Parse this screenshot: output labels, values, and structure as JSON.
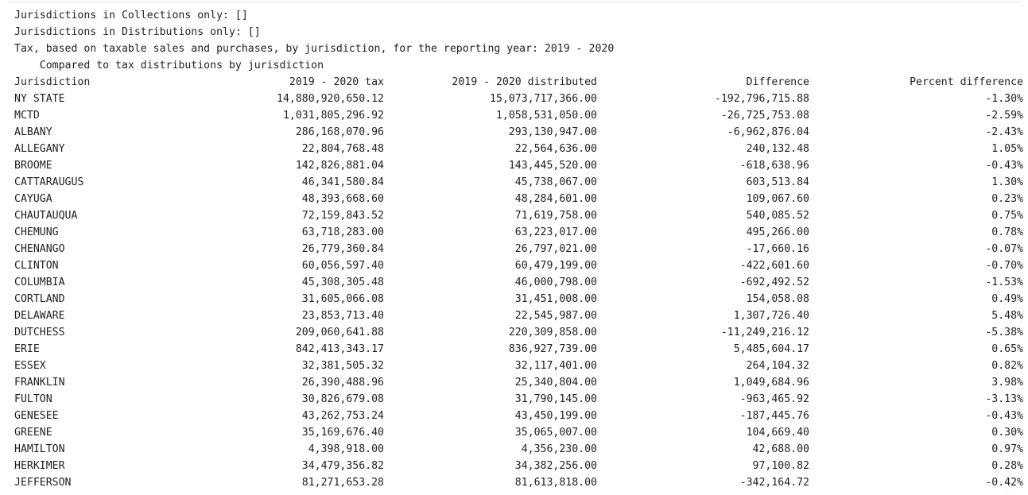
{
  "output": {
    "lines": [
      "Jurisdictions in Collections only: []",
      "Jurisdictions in Distributions only: []",
      "Tax, based on taxable sales and purchases, by jurisdiction, for the reporting year: 2019 - 2020",
      "    Compared to tax distributions by jurisdiction"
    ],
    "table": {
      "headers": [
        "Jurisdiction",
        "2019 - 2020 tax",
        "2019 - 2020 distributed",
        "Difference",
        "Percent difference"
      ],
      "rows": [
        [
          "NY STATE",
          "14,880,920,650.12",
          "15,073,717,366.00",
          "-192,796,715.88",
          "-1.30%"
        ],
        [
          "MCTD",
          "1,031,805,296.92",
          "1,058,531,050.00",
          "-26,725,753.08",
          "-2.59%"
        ],
        [
          "ALBANY",
          "286,168,070.96",
          "293,130,947.00",
          "-6,962,876.04",
          "-2.43%"
        ],
        [
          "ALLEGANY",
          "22,804,768.48",
          "22,564,636.00",
          "240,132.48",
          "1.05%"
        ],
        [
          "BROOME",
          "142,826,881.04",
          "143,445,520.00",
          "-618,638.96",
          "-0.43%"
        ],
        [
          "CATTARAUGUS",
          "46,341,580.84",
          "45,738,067.00",
          "603,513.84",
          "1.30%"
        ],
        [
          "CAYUGA",
          "48,393,668.60",
          "48,284,601.00",
          "109,067.60",
          "0.23%"
        ],
        [
          "CHAUTAUQUA",
          "72,159,843.52",
          "71,619,758.00",
          "540,085.52",
          "0.75%"
        ],
        [
          "CHEMUNG",
          "63,718,283.00",
          "63,223,017.00",
          "495,266.00",
          "0.78%"
        ],
        [
          "CHENANGO",
          "26,779,360.84",
          "26,797,021.00",
          "-17,660.16",
          "-0.07%"
        ],
        [
          "CLINTON",
          "60,056,597.40",
          "60,479,199.00",
          "-422,601.60",
          "-0.70%"
        ],
        [
          "COLUMBIA",
          "45,308,305.48",
          "46,000,798.00",
          "-692,492.52",
          "-1.53%"
        ],
        [
          "CORTLAND",
          "31,605,066.08",
          "31,451,008.00",
          "154,058.08",
          "0.49%"
        ],
        [
          "DELAWARE",
          "23,853,713.40",
          "22,545,987.00",
          "1,307,726.40",
          "5.48%"
        ],
        [
          "DUTCHESS",
          "209,060,641.88",
          "220,309,858.00",
          "-11,249,216.12",
          "-5.38%"
        ],
        [
          "ERIE",
          "842,413,343.17",
          "836,927,739.00",
          "5,485,604.17",
          "0.65%"
        ],
        [
          "ESSEX",
          "32,381,505.32",
          "32,117,401.00",
          "264,104.32",
          "0.82%"
        ],
        [
          "FRANKLIN",
          "26,390,488.96",
          "25,340,804.00",
          "1,049,684.96",
          "3.98%"
        ],
        [
          "FULTON",
          "30,826,679.08",
          "31,790,145.00",
          "-963,465.92",
          "-3.13%"
        ],
        [
          "GENESEE",
          "43,262,753.24",
          "43,450,199.00",
          "-187,445.76",
          "-0.43%"
        ],
        [
          "GREENE",
          "35,169,676.40",
          "35,065,007.00",
          "104,669.40",
          "0.30%"
        ],
        [
          "HAMILTON",
          "4,398,918.00",
          "4,356,230.00",
          "42,688.00",
          "0.97%"
        ],
        [
          "HERKIMER",
          "34,479,356.82",
          "34,382,256.00",
          "97,100.82",
          "0.28%"
        ],
        [
          "JEFFERSON",
          "81,271,653.28",
          "81,613,818.00",
          "-342,164.72",
          "-0.42%"
        ]
      ]
    }
  }
}
